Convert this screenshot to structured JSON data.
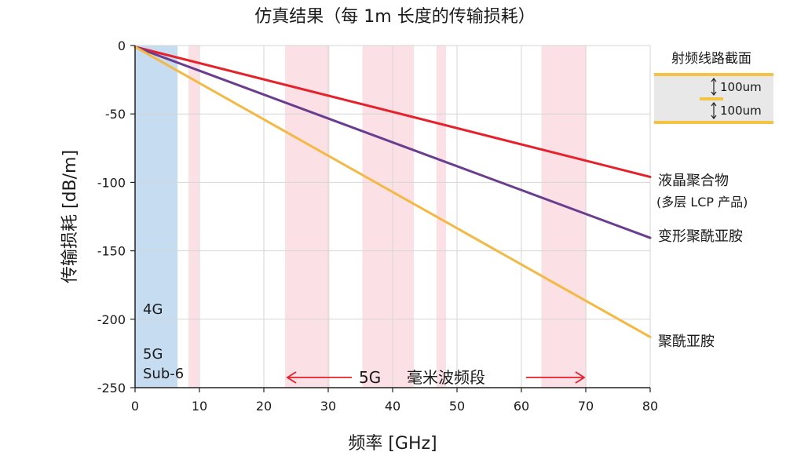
{
  "chart_data": {
    "type": "line",
    "title": "仿真结果（每 1m 长度的传输损耗）",
    "xlabel": "频率 [GHz]",
    "ylabel": "传输损耗 [dB/m]",
    "xlim": [
      0,
      80
    ],
    "ylim": [
      -250,
      0
    ],
    "x_ticks": [
      0,
      10,
      20,
      30,
      40,
      50,
      60,
      70,
      80
    ],
    "y_ticks": [
      0,
      -50,
      -100,
      -150,
      -200,
      -250
    ],
    "x_tick_labels": [
      "0",
      "10",
      "20",
      "30",
      "40",
      "50",
      "60",
      "70",
      "80"
    ],
    "y_tick_labels": [
      "0",
      "-50",
      "-100",
      "-150",
      "-200",
      "-250"
    ],
    "grid": true,
    "series": [
      {
        "name": "液晶聚合物",
        "name_line2": "(多层 LCP 产品)",
        "color": "#e8202a",
        "x": [
          0,
          80
        ],
        "y": [
          -1,
          -96
        ]
      },
      {
        "name": "变形聚酰亚胺",
        "color": "#6a3d8f",
        "x": [
          0,
          80
        ],
        "y": [
          -1,
          -140.5
        ]
      },
      {
        "name": "聚酰亚胺",
        "color": "#f5b942",
        "x": [
          0,
          80
        ],
        "y": [
          -1,
          -213
        ]
      }
    ],
    "bands": [
      {
        "label": "4G / 5G Sub-6",
        "x0": 0,
        "x1": 6.6,
        "color": "#c6dcf0"
      },
      {
        "label": "",
        "x0": 8.3,
        "x1": 9.9,
        "color": "#fbe1e6"
      },
      {
        "label": "",
        "x0": 23.3,
        "x1": 30.2,
        "color": "#fbe1e6"
      },
      {
        "label": "",
        "x0": 35.3,
        "x1": 43.3,
        "color": "#fbe1e6"
      },
      {
        "label": "",
        "x0": 46.8,
        "x1": 48.3,
        "color": "#fbe1e6"
      },
      {
        "label": "",
        "x0": 63.1,
        "x1": 70.1,
        "color": "#fbe1e6"
      }
    ],
    "annotations": {
      "band_4g": "4G",
      "band_5g": "5G",
      "band_sub6": "Sub-6",
      "mmwave_5g": "5G",
      "mmwave_label": "毫米波频段",
      "mmwave_arrow_color": "#e8202a"
    },
    "cross_section": {
      "title": "射频线路截面",
      "label_top": "100um",
      "label_bottom": "100um",
      "conductor_color": "#f5c343",
      "fill_color": "#e8e8e8"
    }
  }
}
